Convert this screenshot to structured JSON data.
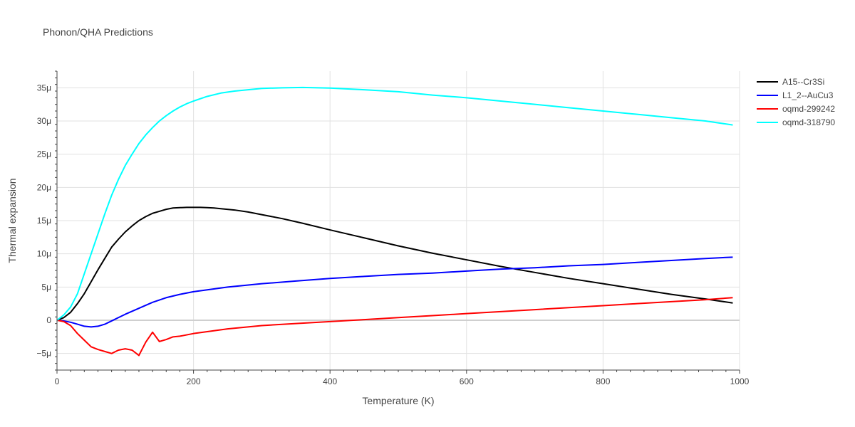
{
  "chart_data": {
    "type": "line",
    "title": "Phonon/QHA Predictions",
    "xlabel": "Temperature (K)",
    "ylabel": "Thermal expansion",
    "xlim": [
      0,
      1000
    ],
    "ylim": [
      -7.5e-06,
      3.75e-05
    ],
    "x_ticks": [
      0,
      200,
      400,
      600,
      800,
      1000
    ],
    "x_tick_labels": [
      "0",
      "200",
      "400",
      "600",
      "800",
      "1000"
    ],
    "y_ticks": [
      -5e-06,
      0,
      5e-06,
      1e-05,
      1.5e-05,
      2e-05,
      2.5e-05,
      3e-05,
      3.5e-05
    ],
    "y_tick_labels": [
      "−5μ",
      "0",
      "5μ",
      "10μ",
      "15μ",
      "20μ",
      "25μ",
      "30μ",
      "35μ"
    ],
    "grid": true,
    "legend_position": "top-right",
    "series": [
      {
        "name": "A15--Cr3Si",
        "color": "#000000",
        "x": [
          0,
          10,
          20,
          30,
          40,
          50,
          60,
          70,
          80,
          90,
          100,
          110,
          120,
          130,
          140,
          150,
          160,
          170,
          180,
          190,
          200,
          210,
          220,
          230,
          240,
          260,
          280,
          300,
          330,
          360,
          400,
          450,
          500,
          550,
          600,
          650,
          700,
          750,
          800,
          850,
          900,
          950,
          990
        ],
        "y": [
          0,
          4e-07,
          1.2e-06,
          2.5e-06,
          4e-06,
          5.8e-06,
          7.6e-06,
          9.3e-06,
          1.1e-05,
          1.22e-05,
          1.33e-05,
          1.42e-05,
          1.5e-05,
          1.56e-05,
          1.61e-05,
          1.64e-05,
          1.67e-05,
          1.69e-05,
          1.695e-05,
          1.7e-05,
          1.7e-05,
          1.7e-05,
          1.695e-05,
          1.69e-05,
          1.68e-05,
          1.66e-05,
          1.63e-05,
          1.59e-05,
          1.53e-05,
          1.46e-05,
          1.36e-05,
          1.24e-05,
          1.12e-05,
          1.01e-05,
          9.1e-06,
          8.1e-06,
          7.2e-06,
          6.3e-06,
          5.5e-06,
          4.7e-06,
          3.9e-06,
          3.2e-06,
          2.6e-06
        ]
      },
      {
        "name": "L1_2--AuCu3",
        "color": "#0000ff",
        "x": [
          0,
          10,
          20,
          30,
          40,
          50,
          60,
          70,
          80,
          90,
          100,
          120,
          140,
          160,
          180,
          200,
          250,
          300,
          350,
          400,
          450,
          500,
          550,
          600,
          650,
          700,
          750,
          800,
          850,
          900,
          950,
          990
        ],
        "y": [
          0,
          -1e-07,
          -3e-07,
          -6e-07,
          -9e-07,
          -1e-06,
          -9e-07,
          -6e-07,
          -1e-07,
          4e-07,
          9e-07,
          1.8e-06,
          2.7e-06,
          3.4e-06,
          3.9e-06,
          4.3e-06,
          5e-06,
          5.5e-06,
          5.9e-06,
          6.3e-06,
          6.6e-06,
          6.9e-06,
          7.1e-06,
          7.4e-06,
          7.7e-06,
          7.9e-06,
          8.2e-06,
          8.4e-06,
          8.7e-06,
          9e-06,
          9.3e-06,
          9.5e-06
        ]
      },
      {
        "name": "oqmd-299242",
        "color": "#ff0000",
        "x": [
          0,
          10,
          20,
          30,
          40,
          50,
          60,
          70,
          80,
          90,
          100,
          110,
          120,
          130,
          140,
          150,
          160,
          170,
          180,
          200,
          250,
          300,
          350,
          400,
          450,
          500,
          550,
          600,
          650,
          700,
          750,
          800,
          850,
          900,
          950,
          990
        ],
        "y": [
          0,
          -2e-07,
          -8e-07,
          -2e-06,
          -3e-06,
          -4e-06,
          -4.4e-06,
          -4.7e-06,
          -5e-06,
          -4.5e-06,
          -4.3e-06,
          -4.5e-06,
          -5.3e-06,
          -3.3e-06,
          -1.8e-06,
          -3.2e-06,
          -2.9e-06,
          -2.5e-06,
          -2.4e-06,
          -2e-06,
          -1.3e-06,
          -8e-07,
          -5e-07,
          -2e-07,
          1e-07,
          4e-07,
          7e-07,
          1e-06,
          1.3e-06,
          1.6e-06,
          1.9e-06,
          2.2e-06,
          2.5e-06,
          2.8e-06,
          3.1e-06,
          3.4e-06
        ]
      },
      {
        "name": "oqmd-318790",
        "color": "#00ffff",
        "x": [
          0,
          10,
          20,
          30,
          40,
          50,
          60,
          70,
          80,
          90,
          100,
          110,
          120,
          130,
          140,
          150,
          160,
          170,
          180,
          190,
          200,
          220,
          240,
          260,
          280,
          300,
          330,
          360,
          400,
          450,
          500,
          550,
          600,
          650,
          700,
          750,
          800,
          850,
          900,
          950,
          990
        ],
        "y": [
          0,
          8e-07,
          2e-06,
          4e-06,
          7e-06,
          1e-05,
          1.3e-05,
          1.6e-05,
          1.88e-05,
          2.12e-05,
          2.33e-05,
          2.5e-05,
          2.66e-05,
          2.79e-05,
          2.9e-05,
          3e-05,
          3.08e-05,
          3.15e-05,
          3.21e-05,
          3.26e-05,
          3.3e-05,
          3.37e-05,
          3.42e-05,
          3.45e-05,
          3.47e-05,
          3.49e-05,
          3.5e-05,
          3.505e-05,
          3.495e-05,
          3.47e-05,
          3.44e-05,
          3.39e-05,
          3.35e-05,
          3.3e-05,
          3.25e-05,
          3.2e-05,
          3.15e-05,
          3.1e-05,
          3.05e-05,
          3e-05,
          2.94e-05
        ]
      }
    ]
  }
}
